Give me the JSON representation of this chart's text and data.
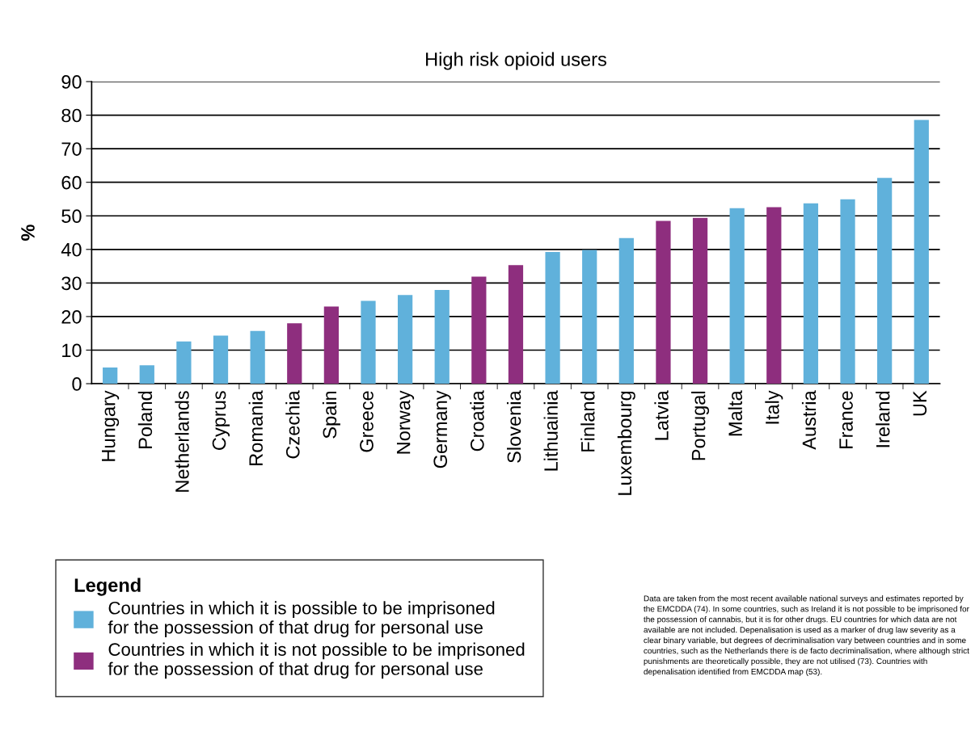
{
  "chart_data": {
    "type": "bar",
    "title": "High risk opioid users",
    "ylabel": "%",
    "categories": [
      "Hungary",
      "Poland",
      "Netherlands",
      "Cyprus",
      "Romania",
      "Czechia",
      "Spain",
      "Greece",
      "Norway",
      "Germany",
      "Croatia",
      "Slovenia",
      "Lithuainia",
      "Finland",
      "Luxembourg",
      "Latvia",
      "Portugal",
      "Malta",
      "Italy",
      "Austria",
      "France",
      "Ireland",
      "UK"
    ],
    "series": [
      {
        "name": "Countries in which it is possible to be imprisoned\nfor the possession of that drug for personal use",
        "color": "#60b1db",
        "values": [
          4.8,
          5.5,
          12.6,
          14.3,
          15.7,
          null,
          null,
          24.7,
          26.4,
          27.9,
          null,
          null,
          39.2,
          39.8,
          43.4,
          null,
          null,
          52.3,
          null,
          53.7,
          54.9,
          61.3,
          78.6
        ]
      },
      {
        "name": "Countries in which it is not possible to be imprisoned\nfor the possession of that drug for personal use",
        "color": "#8e2e7e",
        "values": [
          null,
          null,
          null,
          null,
          null,
          18.0,
          23.0,
          null,
          null,
          null,
          31.9,
          35.3,
          null,
          null,
          null,
          48.5,
          49.4,
          null,
          52.6,
          null,
          null,
          null,
          null
        ]
      }
    ],
    "ylim": [
      0,
      90
    ],
    "yticks": [
      0,
      10,
      20,
      30,
      40,
      50,
      60,
      70,
      80,
      90
    ],
    "grid": "y",
    "legend": "bottom left",
    "legend_title": "Legend",
    "annotations": [
      "Data are taken from the most recent available national surveys and estimates reported by the EMCDDA (74). In some countries, such as Ireland it is not possible to be imprisoned for the possession of cannabis, but it is for other drugs. EU countries for which data are not available are not included. Depenalisation is used as a marker of drug law severity as a clear binary variable, but degrees of decriminalisation vary between countries and in some countries, such as the Netherlands there is de facto decriminalisation, where although strict punishments are theoretically possible, they are not utilised (73). Countries with depenalisation identified from EMCDDA map (53)."
    ]
  }
}
